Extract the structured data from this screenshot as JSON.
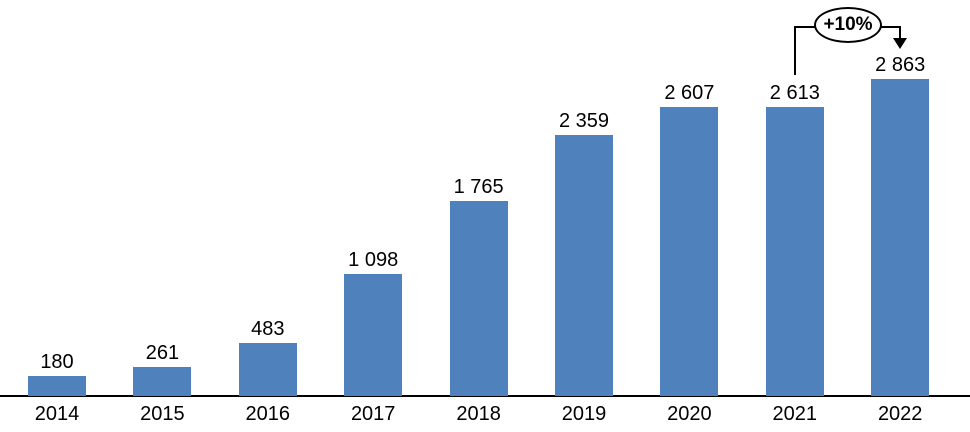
{
  "chart_data": {
    "type": "bar",
    "title": "",
    "xlabel": "",
    "ylabel": "",
    "categories": [
      "2014",
      "2015",
      "2016",
      "2017",
      "2018",
      "2019",
      "2020",
      "2021",
      "2022"
    ],
    "values": [
      180,
      261,
      483,
      1098,
      1765,
      2359,
      2607,
      2613,
      2863
    ],
    "value_labels": [
      "180",
      "261",
      "483",
      "1 098",
      "1 765",
      "2 359",
      "2 607",
      "2 613",
      "2 863"
    ],
    "ylim": [
      0,
      2900
    ],
    "grid": false,
    "legend": false,
    "bar_color": "#4F81BD",
    "axis_color": "#000000",
    "label_color": "#000000",
    "annotation": {
      "text": "+10%",
      "from_category": "2021",
      "to_category": "2022"
    }
  }
}
